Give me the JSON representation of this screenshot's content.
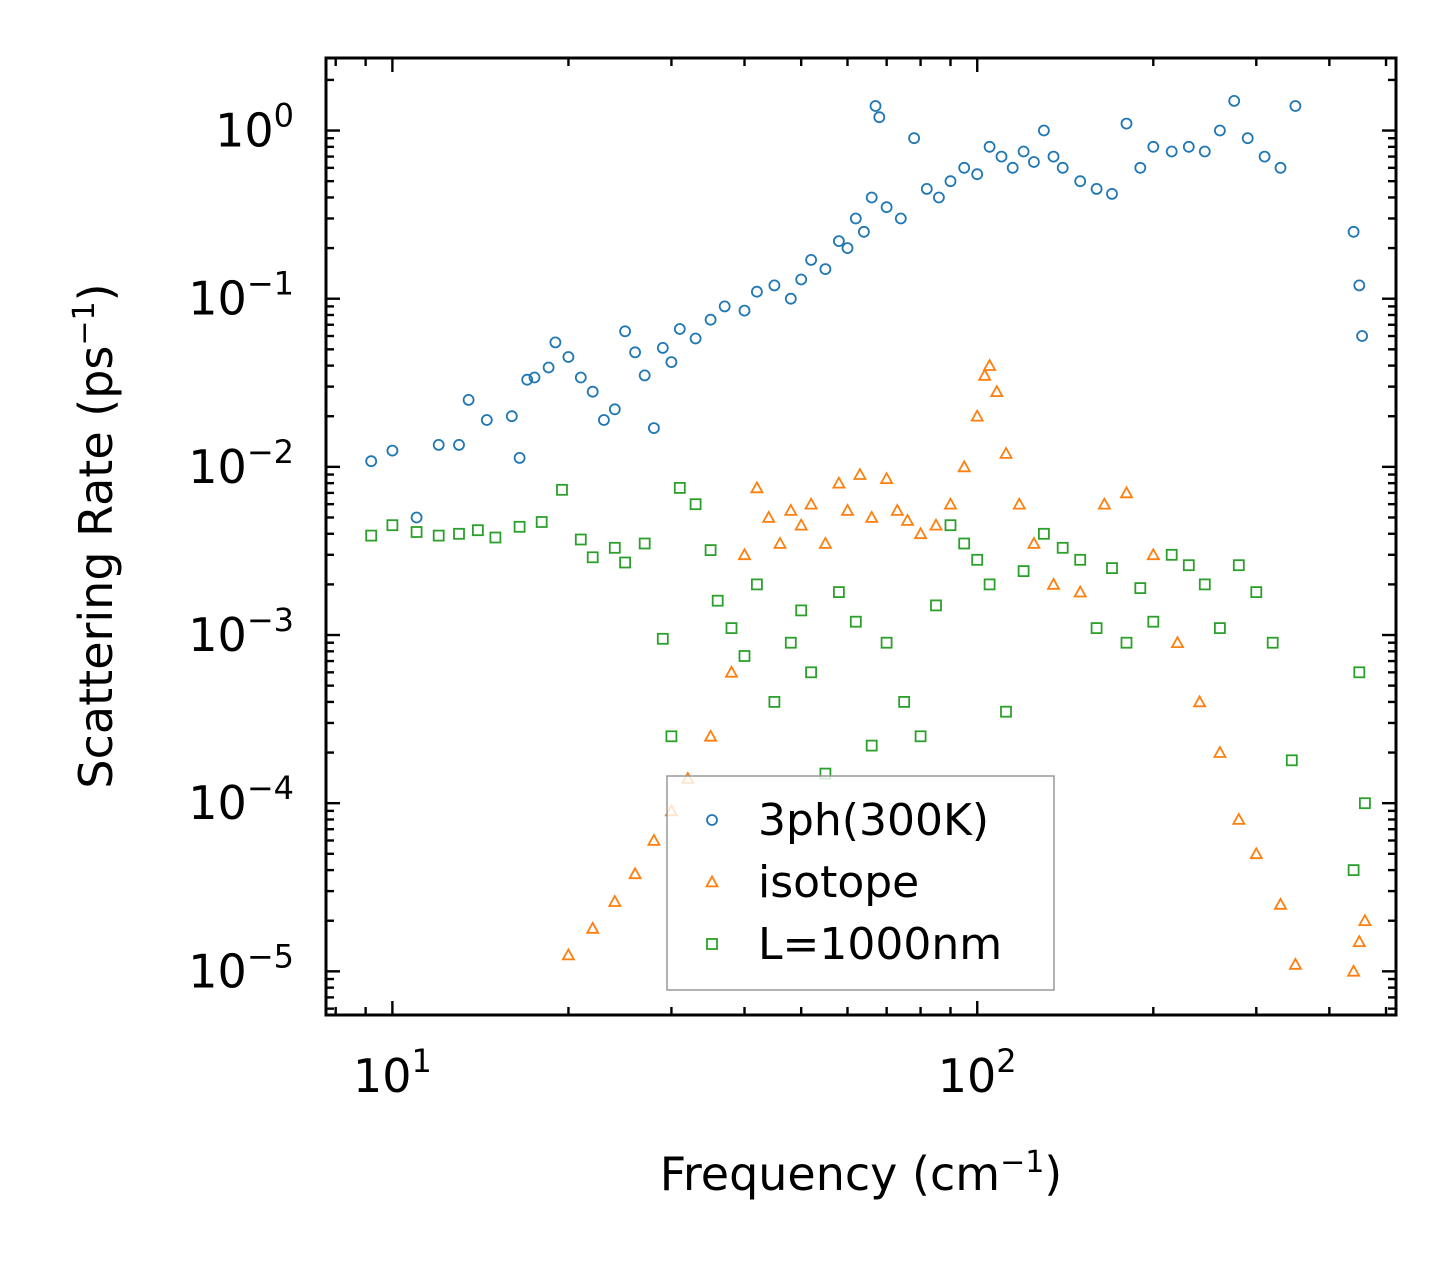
{
  "chart_data": {
    "type": "scatter",
    "title": "",
    "xlabel": "Frequency (cm$^{-1}$)",
    "xlabel_parts": {
      "main": "Frequency (cm",
      "sup": "−1",
      "end": ")"
    },
    "ylabel": "Scattering Rate (ps$^{-1}$)",
    "ylabel_parts": {
      "main": "Scattering Rate (ps",
      "sup": "−1",
      "end": ")"
    },
    "xscale": "log",
    "yscale": "log",
    "xlim": [
      7.7,
      520
    ],
    "ylim": [
      5.5e-06,
      2.7
    ],
    "x_major_ticks": [
      {
        "value": 10,
        "base": "10",
        "exp": "1"
      },
      {
        "value": 100,
        "base": "10",
        "exp": "2"
      }
    ],
    "y_major_ticks": [
      {
        "value": 1,
        "base": "10",
        "exp": "0"
      },
      {
        "value": 0.1,
        "base": "10",
        "exp": "−1"
      },
      {
        "value": 0.01,
        "base": "10",
        "exp": "−2"
      },
      {
        "value": 0.001,
        "base": "10",
        "exp": "−3"
      },
      {
        "value": 0.0001,
        "base": "10",
        "exp": "−4"
      },
      {
        "value": 1e-05,
        "base": "10",
        "exp": "−5"
      }
    ],
    "legend_position": "lower-center",
    "series": [
      {
        "name": "3ph(300K)",
        "color": "#1f77b4",
        "marker": "circle",
        "points": [
          [
            9.2,
            0.0108
          ],
          [
            10.0,
            0.0125
          ],
          [
            11.0,
            0.005
          ],
          [
            12.0,
            0.0135
          ],
          [
            13.0,
            0.0135
          ],
          [
            13.5,
            0.025
          ],
          [
            14.5,
            0.019
          ],
          [
            16.0,
            0.02
          ],
          [
            16.5,
            0.0113
          ],
          [
            17.0,
            0.033
          ],
          [
            17.5,
            0.034
          ],
          [
            18.5,
            0.039
          ],
          [
            19.0,
            0.055
          ],
          [
            20.0,
            0.045
          ],
          [
            21.0,
            0.034
          ],
          [
            22.0,
            0.028
          ],
          [
            23.0,
            0.019
          ],
          [
            24.0,
            0.022
          ],
          [
            25.0,
            0.064
          ],
          [
            26.0,
            0.048
          ],
          [
            27.0,
            0.035
          ],
          [
            28.0,
            0.017
          ],
          [
            29.0,
            0.051
          ],
          [
            30.0,
            0.042
          ],
          [
            31.0,
            0.066
          ],
          [
            33.0,
            0.058
          ],
          [
            35.0,
            0.075
          ],
          [
            37.0,
            0.09
          ],
          [
            40.0,
            0.085
          ],
          [
            42.0,
            0.11
          ],
          [
            45.0,
            0.12
          ],
          [
            48.0,
            0.1
          ],
          [
            50.0,
            0.13
          ],
          [
            52.0,
            0.17
          ],
          [
            55.0,
            0.15
          ],
          [
            58.0,
            0.22
          ],
          [
            60.0,
            0.2
          ],
          [
            62.0,
            0.3
          ],
          [
            64.0,
            0.25
          ],
          [
            66.0,
            0.4
          ],
          [
            67.0,
            1.4
          ],
          [
            68.0,
            1.2
          ],
          [
            70.0,
            0.35
          ],
          [
            74.0,
            0.3
          ],
          [
            78.0,
            0.9
          ],
          [
            82.0,
            0.45
          ],
          [
            86.0,
            0.4
          ],
          [
            90.0,
            0.5
          ],
          [
            95.0,
            0.6
          ],
          [
            100.0,
            0.55
          ],
          [
            105.0,
            0.8
          ],
          [
            110.0,
            0.7
          ],
          [
            115.0,
            0.6
          ],
          [
            120.0,
            0.75
          ],
          [
            125.0,
            0.65
          ],
          [
            130.0,
            1.0
          ],
          [
            135.0,
            0.7
          ],
          [
            140.0,
            0.6
          ],
          [
            150.0,
            0.5
          ],
          [
            160.0,
            0.45
          ],
          [
            170.0,
            0.42
          ],
          [
            180.0,
            1.1
          ],
          [
            190.0,
            0.6
          ],
          [
            200.0,
            0.8
          ],
          [
            215.0,
            0.75
          ],
          [
            230.0,
            0.8
          ],
          [
            245.0,
            0.75
          ],
          [
            260.0,
            1.0
          ],
          [
            275.0,
            1.5
          ],
          [
            290.0,
            0.9
          ],
          [
            310.0,
            0.7
          ],
          [
            330.0,
            0.6
          ],
          [
            350.0,
            1.4
          ],
          [
            440.0,
            0.25
          ],
          [
            450.0,
            0.12
          ],
          [
            455.0,
            0.06
          ]
        ]
      },
      {
        "name": "isotope",
        "color": "#ff7f0e",
        "marker": "triangle",
        "points": [
          [
            20.0,
            1.25e-05
          ],
          [
            22.0,
            1.8e-05
          ],
          [
            24.0,
            2.6e-05
          ],
          [
            26.0,
            3.8e-05
          ],
          [
            28.0,
            6e-05
          ],
          [
            30.0,
            9e-05
          ],
          [
            32.0,
            0.00014
          ],
          [
            35.0,
            0.00025
          ],
          [
            38.0,
            0.0006
          ],
          [
            40.0,
            0.003
          ],
          [
            42.0,
            0.0075
          ],
          [
            44.0,
            0.005
          ],
          [
            46.0,
            0.0035
          ],
          [
            48.0,
            0.0055
          ],
          [
            50.0,
            0.0045
          ],
          [
            52.0,
            0.006
          ],
          [
            55.0,
            0.0035
          ],
          [
            58.0,
            0.008
          ],
          [
            60.0,
            0.0055
          ],
          [
            63.0,
            0.009
          ],
          [
            66.0,
            0.005
          ],
          [
            70.0,
            0.0085
          ],
          [
            73.0,
            0.0055
          ],
          [
            76.0,
            0.0048
          ],
          [
            80.0,
            0.004
          ],
          [
            85.0,
            0.0045
          ],
          [
            90.0,
            0.006
          ],
          [
            95.0,
            0.01
          ],
          [
            100.0,
            0.02
          ],
          [
            103.0,
            0.035
          ],
          [
            105.0,
            0.04
          ],
          [
            108.0,
            0.028
          ],
          [
            112.0,
            0.012
          ],
          [
            118.0,
            0.006
          ],
          [
            125.0,
            0.0035
          ],
          [
            135.0,
            0.002
          ],
          [
            150.0,
            0.0018
          ],
          [
            165.0,
            0.006
          ],
          [
            180.0,
            0.007
          ],
          [
            200.0,
            0.003
          ],
          [
            220.0,
            0.0009
          ],
          [
            240.0,
            0.0004
          ],
          [
            260.0,
            0.0002
          ],
          [
            280.0,
            8e-05
          ],
          [
            300.0,
            5e-05
          ],
          [
            330.0,
            2.5e-05
          ],
          [
            350.0,
            1.1e-05
          ],
          [
            440.0,
            1e-05
          ],
          [
            450.0,
            1.5e-05
          ],
          [
            460.0,
            2e-05
          ]
        ]
      },
      {
        "name": "L=1000nm",
        "color": "#2ca02c",
        "marker": "square",
        "points": [
          [
            9.2,
            0.0039
          ],
          [
            10.0,
            0.0045
          ],
          [
            11.0,
            0.0041
          ],
          [
            12.0,
            0.0039
          ],
          [
            13.0,
            0.004
          ],
          [
            14.0,
            0.0042
          ],
          [
            15.0,
            0.0038
          ],
          [
            16.5,
            0.0044
          ],
          [
            18.0,
            0.0047
          ],
          [
            19.5,
            0.0073
          ],
          [
            21.0,
            0.0037
          ],
          [
            22.0,
            0.0029
          ],
          [
            24.0,
            0.0033
          ],
          [
            25.0,
            0.0027
          ],
          [
            27.0,
            0.0035
          ],
          [
            29.0,
            0.00095
          ],
          [
            30.0,
            0.00025
          ],
          [
            31.0,
            0.0075
          ],
          [
            33.0,
            0.006
          ],
          [
            35.0,
            0.0032
          ],
          [
            36.0,
            0.0016
          ],
          [
            38.0,
            0.0011
          ],
          [
            40.0,
            0.00075
          ],
          [
            42.0,
            0.002
          ],
          [
            45.0,
            0.0004
          ],
          [
            48.0,
            0.0009
          ],
          [
            50.0,
            0.0014
          ],
          [
            52.0,
            0.0006
          ],
          [
            55.0,
            0.00015
          ],
          [
            58.0,
            0.0018
          ],
          [
            62.0,
            0.0012
          ],
          [
            66.0,
            0.00022
          ],
          [
            70.0,
            0.0009
          ],
          [
            75.0,
            0.0004
          ],
          [
            80.0,
            0.00025
          ],
          [
            85.0,
            0.0015
          ],
          [
            90.0,
            0.0045
          ],
          [
            95.0,
            0.0035
          ],
          [
            100.0,
            0.0028
          ],
          [
            105.0,
            0.002
          ],
          [
            112.0,
            0.00035
          ],
          [
            120.0,
            0.0024
          ],
          [
            130.0,
            0.004
          ],
          [
            140.0,
            0.0033
          ],
          [
            150.0,
            0.0028
          ],
          [
            160.0,
            0.0011
          ],
          [
            170.0,
            0.0025
          ],
          [
            180.0,
            0.0009
          ],
          [
            190.0,
            0.0019
          ],
          [
            200.0,
            0.0012
          ],
          [
            215.0,
            0.003
          ],
          [
            230.0,
            0.0026
          ],
          [
            245.0,
            0.002
          ],
          [
            260.0,
            0.0011
          ],
          [
            280.0,
            0.0026
          ],
          [
            300.0,
            0.0018
          ],
          [
            320.0,
            0.0009
          ],
          [
            345.0,
            0.00018
          ],
          [
            440.0,
            4e-05
          ],
          [
            450.0,
            0.0006
          ],
          [
            460.0,
            0.0001
          ]
        ]
      }
    ]
  }
}
